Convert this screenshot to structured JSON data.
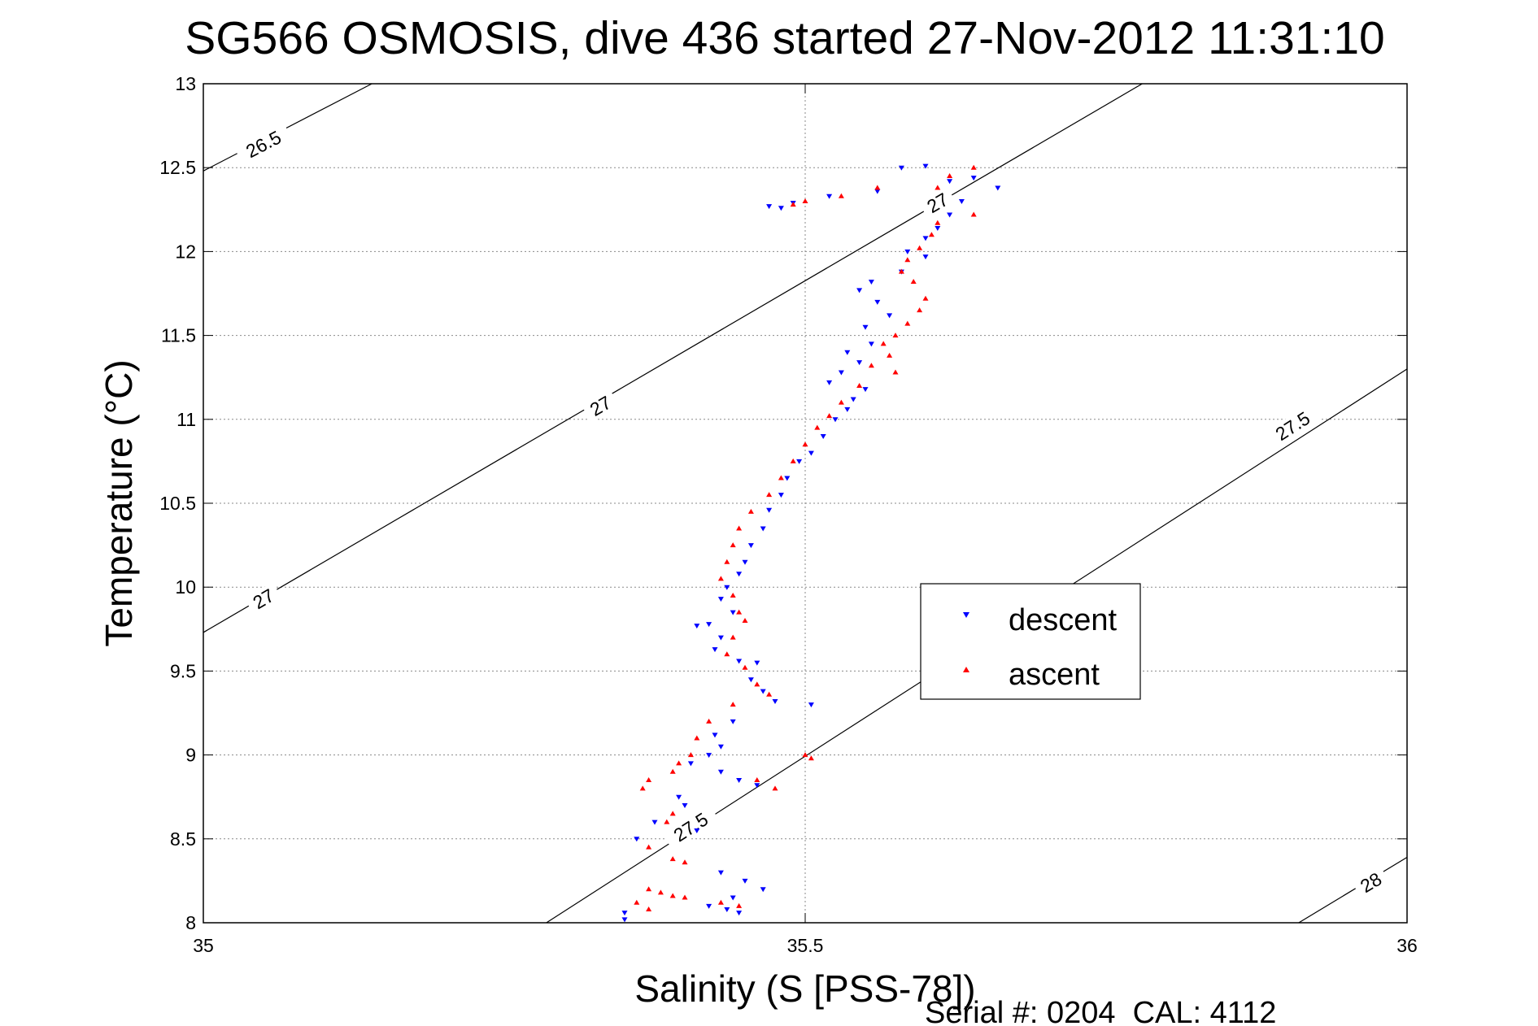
{
  "chart_data": {
    "type": "scatter",
    "title": "SG566 OSMOSIS, dive 436 started 27-Nov-2012 11:31:10",
    "xlabel": "Salinity (S [PSS-78])",
    "ylabel": "Temperature (°C)",
    "xlim": [
      35,
      36
    ],
    "ylim": [
      8,
      13
    ],
    "xticks": [
      "35",
      "35.5",
      "36"
    ],
    "xtick_values": [
      35,
      35.5,
      36
    ],
    "yticks": [
      "8",
      "8.5",
      "9",
      "9.5",
      "10",
      "10.5",
      "11",
      "11.5",
      "12",
      "12.5",
      "13"
    ],
    "ytick_values": [
      8,
      8.5,
      9,
      9.5,
      10,
      10.5,
      11,
      11.5,
      12,
      12.5,
      13
    ],
    "grid": true,
    "legend_position": "right",
    "footer": "Serial #: 0204  CAL: 4112",
    "colors": {
      "descent": "#0000ff",
      "ascent": "#ff0000",
      "contour": "#000000"
    },
    "contours": [
      {
        "level": "26.5",
        "line": [
          [
            35.0,
            12.48
          ],
          [
            35.14,
            13.0
          ]
        ],
        "labels": [
          [
            35.05,
            12.64
          ]
        ]
      },
      {
        "level": "27",
        "line": [
          [
            35.0,
            9.73
          ],
          [
            35.78,
            13.0
          ]
        ],
        "labels": [
          [
            35.05,
            9.93
          ],
          [
            35.33,
            11.08
          ],
          [
            35.61,
            12.29
          ]
        ]
      },
      {
        "level": "27.5",
        "line": [
          [
            35.285,
            8.0
          ],
          [
            36.0,
            11.3
          ]
        ],
        "labels": [
          [
            35.405,
            8.57
          ],
          [
            35.905,
            10.96
          ]
        ]
      },
      {
        "level": "28",
        "line": [
          [
            35.91,
            8.0
          ],
          [
            36.0,
            8.39
          ]
        ],
        "labels": [
          [
            35.97,
            8.24
          ]
        ]
      }
    ],
    "series": [
      {
        "name": "descent",
        "marker": "triangle-down",
        "color": "#0000ff",
        "points": [
          [
            35.6,
            12.51
          ],
          [
            35.58,
            12.5
          ],
          [
            35.64,
            12.44
          ],
          [
            35.62,
            12.42
          ],
          [
            35.66,
            12.38
          ],
          [
            35.56,
            12.36
          ],
          [
            35.52,
            12.33
          ],
          [
            35.49,
            12.29
          ],
          [
            35.47,
            12.27
          ],
          [
            35.48,
            12.26
          ],
          [
            35.63,
            12.3
          ],
          [
            35.62,
            12.22
          ],
          [
            35.61,
            12.14
          ],
          [
            35.6,
            12.08
          ],
          [
            35.585,
            12.0
          ],
          [
            35.6,
            11.97
          ],
          [
            35.58,
            11.88
          ],
          [
            35.555,
            11.82
          ],
          [
            35.545,
            11.77
          ],
          [
            35.56,
            11.7
          ],
          [
            35.57,
            11.62
          ],
          [
            35.55,
            11.55
          ],
          [
            35.555,
            11.45
          ],
          [
            35.535,
            11.4
          ],
          [
            35.545,
            11.34
          ],
          [
            35.53,
            11.28
          ],
          [
            35.52,
            11.22
          ],
          [
            35.55,
            11.18
          ],
          [
            35.54,
            11.12
          ],
          [
            35.535,
            11.06
          ],
          [
            35.525,
            11.0
          ],
          [
            35.515,
            10.9
          ],
          [
            35.505,
            10.8
          ],
          [
            35.495,
            10.75
          ],
          [
            35.485,
            10.65
          ],
          [
            35.48,
            10.55
          ],
          [
            35.47,
            10.46
          ],
          [
            35.465,
            10.35
          ],
          [
            35.455,
            10.25
          ],
          [
            35.45,
            10.15
          ],
          [
            35.445,
            10.08
          ],
          [
            35.435,
            10.0
          ],
          [
            35.43,
            9.93
          ],
          [
            35.44,
            9.85
          ],
          [
            35.42,
            9.78
          ],
          [
            35.41,
            9.77
          ],
          [
            35.43,
            9.7
          ],
          [
            35.425,
            9.63
          ],
          [
            35.445,
            9.56
          ],
          [
            35.46,
            9.55
          ],
          [
            35.455,
            9.45
          ],
          [
            35.465,
            9.38
          ],
          [
            35.475,
            9.32
          ],
          [
            35.505,
            9.3
          ],
          [
            35.44,
            9.2
          ],
          [
            35.425,
            9.12
          ],
          [
            35.43,
            9.05
          ],
          [
            35.42,
            9.0
          ],
          [
            35.405,
            8.95
          ],
          [
            35.43,
            8.9
          ],
          [
            35.445,
            8.85
          ],
          [
            35.46,
            8.82
          ],
          [
            35.395,
            8.75
          ],
          [
            35.4,
            8.7
          ],
          [
            35.375,
            8.6
          ],
          [
            35.36,
            8.5
          ],
          [
            35.41,
            8.55
          ],
          [
            35.43,
            8.3
          ],
          [
            35.45,
            8.25
          ],
          [
            35.465,
            8.2
          ],
          [
            35.44,
            8.15
          ],
          [
            35.42,
            8.1
          ],
          [
            35.435,
            8.08
          ],
          [
            35.445,
            8.06
          ],
          [
            35.35,
            8.06
          ],
          [
            35.35,
            8.02
          ]
        ]
      },
      {
        "name": "ascent",
        "marker": "triangle-up",
        "color": "#ff0000",
        "points": [
          [
            35.64,
            12.5
          ],
          [
            35.62,
            12.45
          ],
          [
            35.61,
            12.38
          ],
          [
            35.56,
            12.38
          ],
          [
            35.53,
            12.33
          ],
          [
            35.5,
            12.3
          ],
          [
            35.49,
            12.28
          ],
          [
            35.64,
            12.22
          ],
          [
            35.61,
            12.17
          ],
          [
            35.605,
            12.1
          ],
          [
            35.595,
            12.02
          ],
          [
            35.585,
            11.95
          ],
          [
            35.58,
            11.88
          ],
          [
            35.59,
            11.82
          ],
          [
            35.6,
            11.72
          ],
          [
            35.595,
            11.65
          ],
          [
            35.585,
            11.57
          ],
          [
            35.575,
            11.5
          ],
          [
            35.565,
            11.45
          ],
          [
            35.57,
            11.38
          ],
          [
            35.555,
            11.32
          ],
          [
            35.575,
            11.28
          ],
          [
            35.545,
            11.2
          ],
          [
            35.53,
            11.1
          ],
          [
            35.52,
            11.02
          ],
          [
            35.51,
            10.95
          ],
          [
            35.5,
            10.85
          ],
          [
            35.49,
            10.75
          ],
          [
            35.48,
            10.65
          ],
          [
            35.47,
            10.55
          ],
          [
            35.455,
            10.45
          ],
          [
            35.445,
            10.35
          ],
          [
            35.44,
            10.25
          ],
          [
            35.435,
            10.15
          ],
          [
            35.43,
            10.05
          ],
          [
            35.44,
            9.95
          ],
          [
            35.445,
            9.85
          ],
          [
            35.45,
            9.8
          ],
          [
            35.44,
            9.7
          ],
          [
            35.435,
            9.6
          ],
          [
            35.45,
            9.52
          ],
          [
            35.46,
            9.42
          ],
          [
            35.47,
            9.36
          ],
          [
            35.44,
            9.3
          ],
          [
            35.42,
            9.2
          ],
          [
            35.41,
            9.1
          ],
          [
            35.405,
            9.0
          ],
          [
            35.395,
            8.95
          ],
          [
            35.39,
            8.9
          ],
          [
            35.37,
            8.85
          ],
          [
            35.365,
            8.8
          ],
          [
            35.46,
            8.85
          ],
          [
            35.475,
            8.8
          ],
          [
            35.5,
            9.0
          ],
          [
            35.505,
            8.98
          ],
          [
            35.39,
            8.65
          ],
          [
            35.385,
            8.6
          ],
          [
            35.37,
            8.45
          ],
          [
            35.39,
            8.38
          ],
          [
            35.4,
            8.36
          ],
          [
            35.37,
            8.2
          ],
          [
            35.38,
            8.18
          ],
          [
            35.39,
            8.16
          ],
          [
            35.4,
            8.15
          ],
          [
            35.43,
            8.12
          ],
          [
            35.445,
            8.1
          ],
          [
            35.36,
            8.12
          ],
          [
            35.37,
            8.08
          ]
        ]
      }
    ]
  }
}
